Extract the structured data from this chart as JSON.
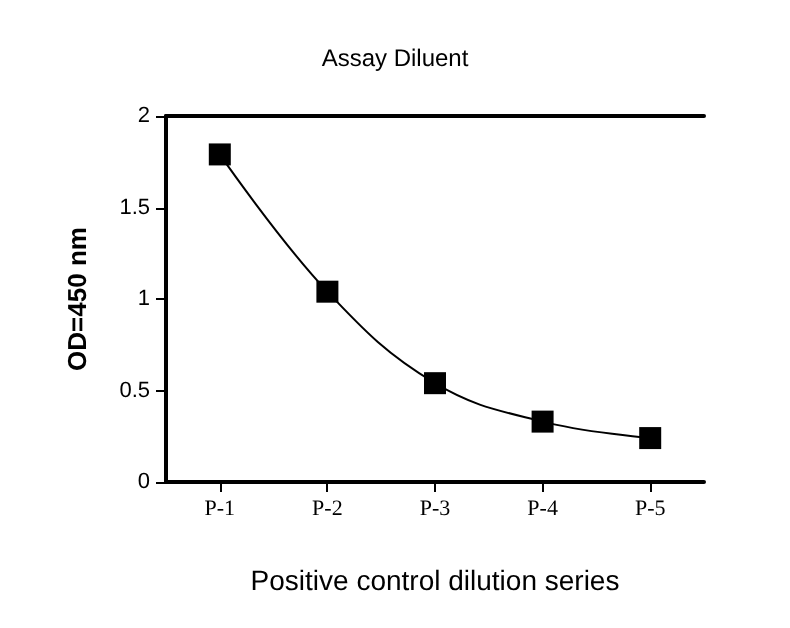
{
  "chart_data": {
    "type": "line",
    "title": "Assay Diluent",
    "xlabel": "Positive control dilution series",
    "ylabel": "OD=450 nm",
    "categories": [
      "P-1",
      "P-2",
      "P-3",
      "P-4",
      "P-5"
    ],
    "series": [
      {
        "color": "#000000",
        "values": [
          1.79,
          1.04,
          0.54,
          0.33,
          0.24
        ]
      }
    ],
    "ylim": [
      0,
      2
    ],
    "yticks": [
      0,
      0.5,
      1,
      1.5,
      2
    ],
    "grid": false,
    "marker": "square",
    "line_style": "solid"
  }
}
